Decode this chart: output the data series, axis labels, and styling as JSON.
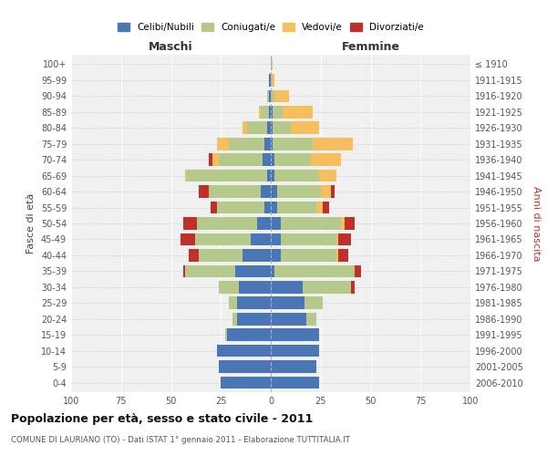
{
  "age_groups": [
    "0-4",
    "5-9",
    "10-14",
    "15-19",
    "20-24",
    "25-29",
    "30-34",
    "35-39",
    "40-44",
    "45-49",
    "50-54",
    "55-59",
    "60-64",
    "65-69",
    "70-74",
    "75-79",
    "80-84",
    "85-89",
    "90-94",
    "95-99",
    "100+"
  ],
  "birth_years": [
    "2006-2010",
    "2001-2005",
    "1996-2000",
    "1991-1995",
    "1986-1990",
    "1981-1985",
    "1976-1980",
    "1971-1975",
    "1966-1970",
    "1961-1965",
    "1956-1960",
    "1951-1955",
    "1946-1950",
    "1941-1945",
    "1936-1940",
    "1931-1935",
    "1926-1930",
    "1921-1925",
    "1916-1920",
    "1911-1915",
    "≤ 1910"
  ],
  "colors": {
    "celibe": "#4B76B5",
    "coniugato": "#B5C98A",
    "vedovo": "#F5BE5E",
    "divorziato": "#C0302A"
  },
  "maschi": {
    "celibe": [
      25,
      26,
      27,
      22,
      17,
      17,
      16,
      18,
      14,
      10,
      7,
      3,
      5,
      2,
      4,
      3,
      2,
      1,
      1,
      1,
      0
    ],
    "coniugato": [
      0,
      0,
      0,
      1,
      2,
      4,
      10,
      25,
      22,
      28,
      30,
      24,
      26,
      40,
      22,
      18,
      10,
      4,
      1,
      0,
      0
    ],
    "vedovo": [
      0,
      0,
      0,
      0,
      0,
      0,
      0,
      0,
      0,
      0,
      0,
      0,
      0,
      1,
      3,
      6,
      2,
      1,
      0,
      0,
      0
    ],
    "divorziato": [
      0,
      0,
      0,
      0,
      0,
      0,
      0,
      1,
      5,
      7,
      7,
      3,
      5,
      0,
      2,
      0,
      0,
      0,
      0,
      0,
      0
    ]
  },
  "femmine": {
    "nubile": [
      24,
      23,
      24,
      24,
      18,
      17,
      16,
      2,
      5,
      5,
      5,
      3,
      3,
      2,
      2,
      1,
      1,
      1,
      0,
      0,
      0
    ],
    "coniugata": [
      0,
      0,
      0,
      0,
      5,
      9,
      24,
      40,
      28,
      28,
      30,
      20,
      22,
      22,
      18,
      20,
      9,
      5,
      2,
      0,
      0
    ],
    "vedova": [
      0,
      0,
      0,
      0,
      0,
      0,
      0,
      0,
      1,
      1,
      2,
      3,
      5,
      9,
      15,
      20,
      14,
      15,
      7,
      2,
      1
    ],
    "divorziata": [
      0,
      0,
      0,
      0,
      0,
      0,
      2,
      3,
      5,
      6,
      5,
      3,
      2,
      0,
      0,
      0,
      0,
      0,
      0,
      0,
      0
    ]
  },
  "xlim": 100,
  "title": "Popolazione per età, sesso e stato civile - 2011",
  "subtitle": "COMUNE DI LAURIANO (TO) - Dati ISTAT 1° gennaio 2011 - Elaborazione TUTTITALIA.IT",
  "ylabel_left": "Fasce di età",
  "ylabel_right": "Anni di nascita",
  "xlabel_maschi": "Maschi",
  "xlabel_femmine": "Femmine",
  "bg_color": "#f0f0f0",
  "grid_color": "#cccccc"
}
